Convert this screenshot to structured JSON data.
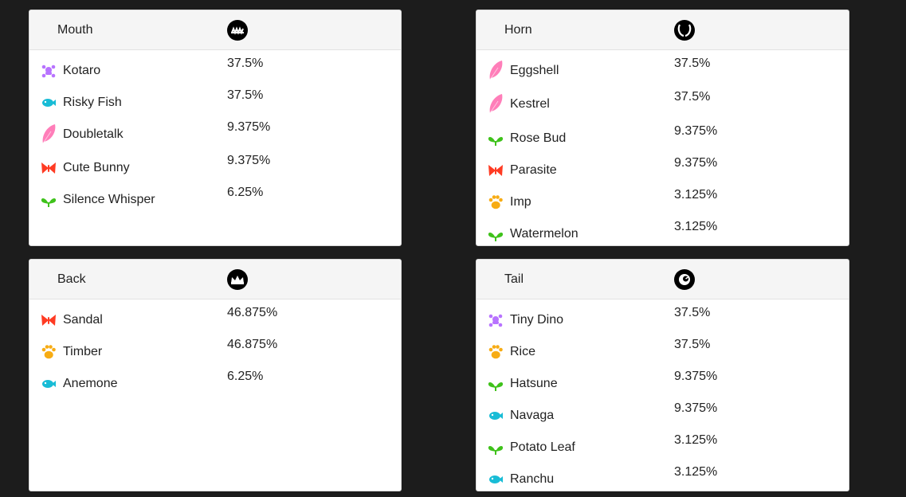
{
  "colors": {
    "reptile": "#b873ff",
    "aquatic": "#18bcd6",
    "bird": "#ff7eb9",
    "beast": "#f7ac14",
    "plant": "#3fc21b",
    "bug": "#ff3b23"
  },
  "panels": [
    {
      "title": "Mouth",
      "icon": "mouth-icon",
      "rows": [
        {
          "name": "Kotaro",
          "pct": "37.5%",
          "cls": "reptile"
        },
        {
          "name": "Risky Fish",
          "pct": "37.5%",
          "cls": "aquatic"
        },
        {
          "name": "Doubletalk",
          "pct": "9.375%",
          "cls": "bird"
        },
        {
          "name": "Cute Bunny",
          "pct": "9.375%",
          "cls": "bug"
        },
        {
          "name": "Silence Whisper",
          "pct": "6.25%",
          "cls": "plant"
        }
      ]
    },
    {
      "title": "Horn",
      "icon": "horn-icon",
      "rows": [
        {
          "name": "Eggshell",
          "pct": "37.5%",
          "cls": "bird"
        },
        {
          "name": "Kestrel",
          "pct": "37.5%",
          "cls": "bird"
        },
        {
          "name": "Rose Bud",
          "pct": "9.375%",
          "cls": "plant"
        },
        {
          "name": "Parasite",
          "pct": "9.375%",
          "cls": "bug"
        },
        {
          "name": "Imp",
          "pct": "3.125%",
          "cls": "beast"
        },
        {
          "name": "Watermelon",
          "pct": "3.125%",
          "cls": "plant"
        }
      ]
    },
    {
      "title": "Back",
      "icon": "back-icon",
      "rows": [
        {
          "name": "Sandal",
          "pct": "46.875%",
          "cls": "bug"
        },
        {
          "name": "Timber",
          "pct": "46.875%",
          "cls": "beast"
        },
        {
          "name": "Anemone",
          "pct": "6.25%",
          "cls": "aquatic"
        }
      ]
    },
    {
      "title": "Tail",
      "icon": "tail-icon",
      "rows": [
        {
          "name": "Tiny Dino",
          "pct": "37.5%",
          "cls": "reptile"
        },
        {
          "name": "Rice",
          "pct": "37.5%",
          "cls": "beast"
        },
        {
          "name": "Hatsune",
          "pct": "9.375%",
          "cls": "plant"
        },
        {
          "name": "Navaga",
          "pct": "9.375%",
          "cls": "aquatic"
        },
        {
          "name": "Potato Leaf",
          "pct": "3.125%",
          "cls": "plant"
        },
        {
          "name": "Ranchu",
          "pct": "3.125%",
          "cls": "aquatic"
        }
      ]
    }
  ]
}
